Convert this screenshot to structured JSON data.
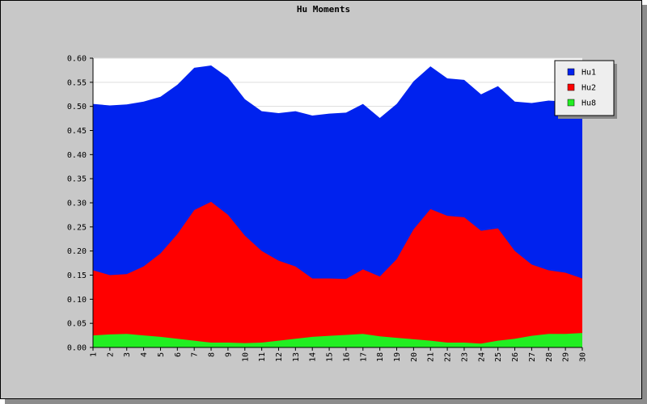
{
  "chart_data": {
    "type": "area",
    "title": "Hu Moments",
    "xlabel": "",
    "ylabel": "",
    "x": [
      1,
      2,
      3,
      4,
      5,
      6,
      7,
      8,
      9,
      10,
      11,
      12,
      13,
      14,
      15,
      16,
      17,
      18,
      19,
      20,
      21,
      22,
      23,
      24,
      25,
      26,
      27,
      28,
      29,
      30
    ],
    "ylim": [
      0,
      0.6
    ],
    "yticks": [
      "0.00",
      "0.05",
      "0.10",
      "0.15",
      "0.20",
      "0.25",
      "0.30",
      "0.35",
      "0.40",
      "0.45",
      "0.50",
      "0.55",
      "0.60"
    ],
    "grid": true,
    "legend_position": "top-right",
    "series": [
      {
        "name": "Hu1",
        "color": "#0022ee",
        "values": [
          0.505,
          0.502,
          0.504,
          0.51,
          0.52,
          0.545,
          0.58,
          0.585,
          0.56,
          0.515,
          0.49,
          0.486,
          0.49,
          0.481,
          0.485,
          0.487,
          0.505,
          0.476,
          0.505,
          0.552,
          0.583,
          0.558,
          0.555,
          0.525,
          0.542,
          0.51,
          0.507,
          0.512,
          0.51,
          0.504
        ]
      },
      {
        "name": "Hu2",
        "color": "#ff0000",
        "values": [
          0.16,
          0.15,
          0.152,
          0.168,
          0.195,
          0.235,
          0.285,
          0.302,
          0.275,
          0.232,
          0.2,
          0.18,
          0.168,
          0.143,
          0.143,
          0.142,
          0.162,
          0.147,
          0.183,
          0.245,
          0.287,
          0.273,
          0.27,
          0.242,
          0.247,
          0.2,
          0.172,
          0.16,
          0.155,
          0.143
        ]
      },
      {
        "name": "Hu8",
        "color": "#22ee22",
        "values": [
          0.025,
          0.027,
          0.028,
          0.025,
          0.022,
          0.018,
          0.014,
          0.01,
          0.01,
          0.009,
          0.01,
          0.014,
          0.018,
          0.022,
          0.024,
          0.026,
          0.028,
          0.023,
          0.02,
          0.017,
          0.014,
          0.01,
          0.01,
          0.008,
          0.014,
          0.018,
          0.024,
          0.028,
          0.028,
          0.03
        ]
      }
    ]
  }
}
